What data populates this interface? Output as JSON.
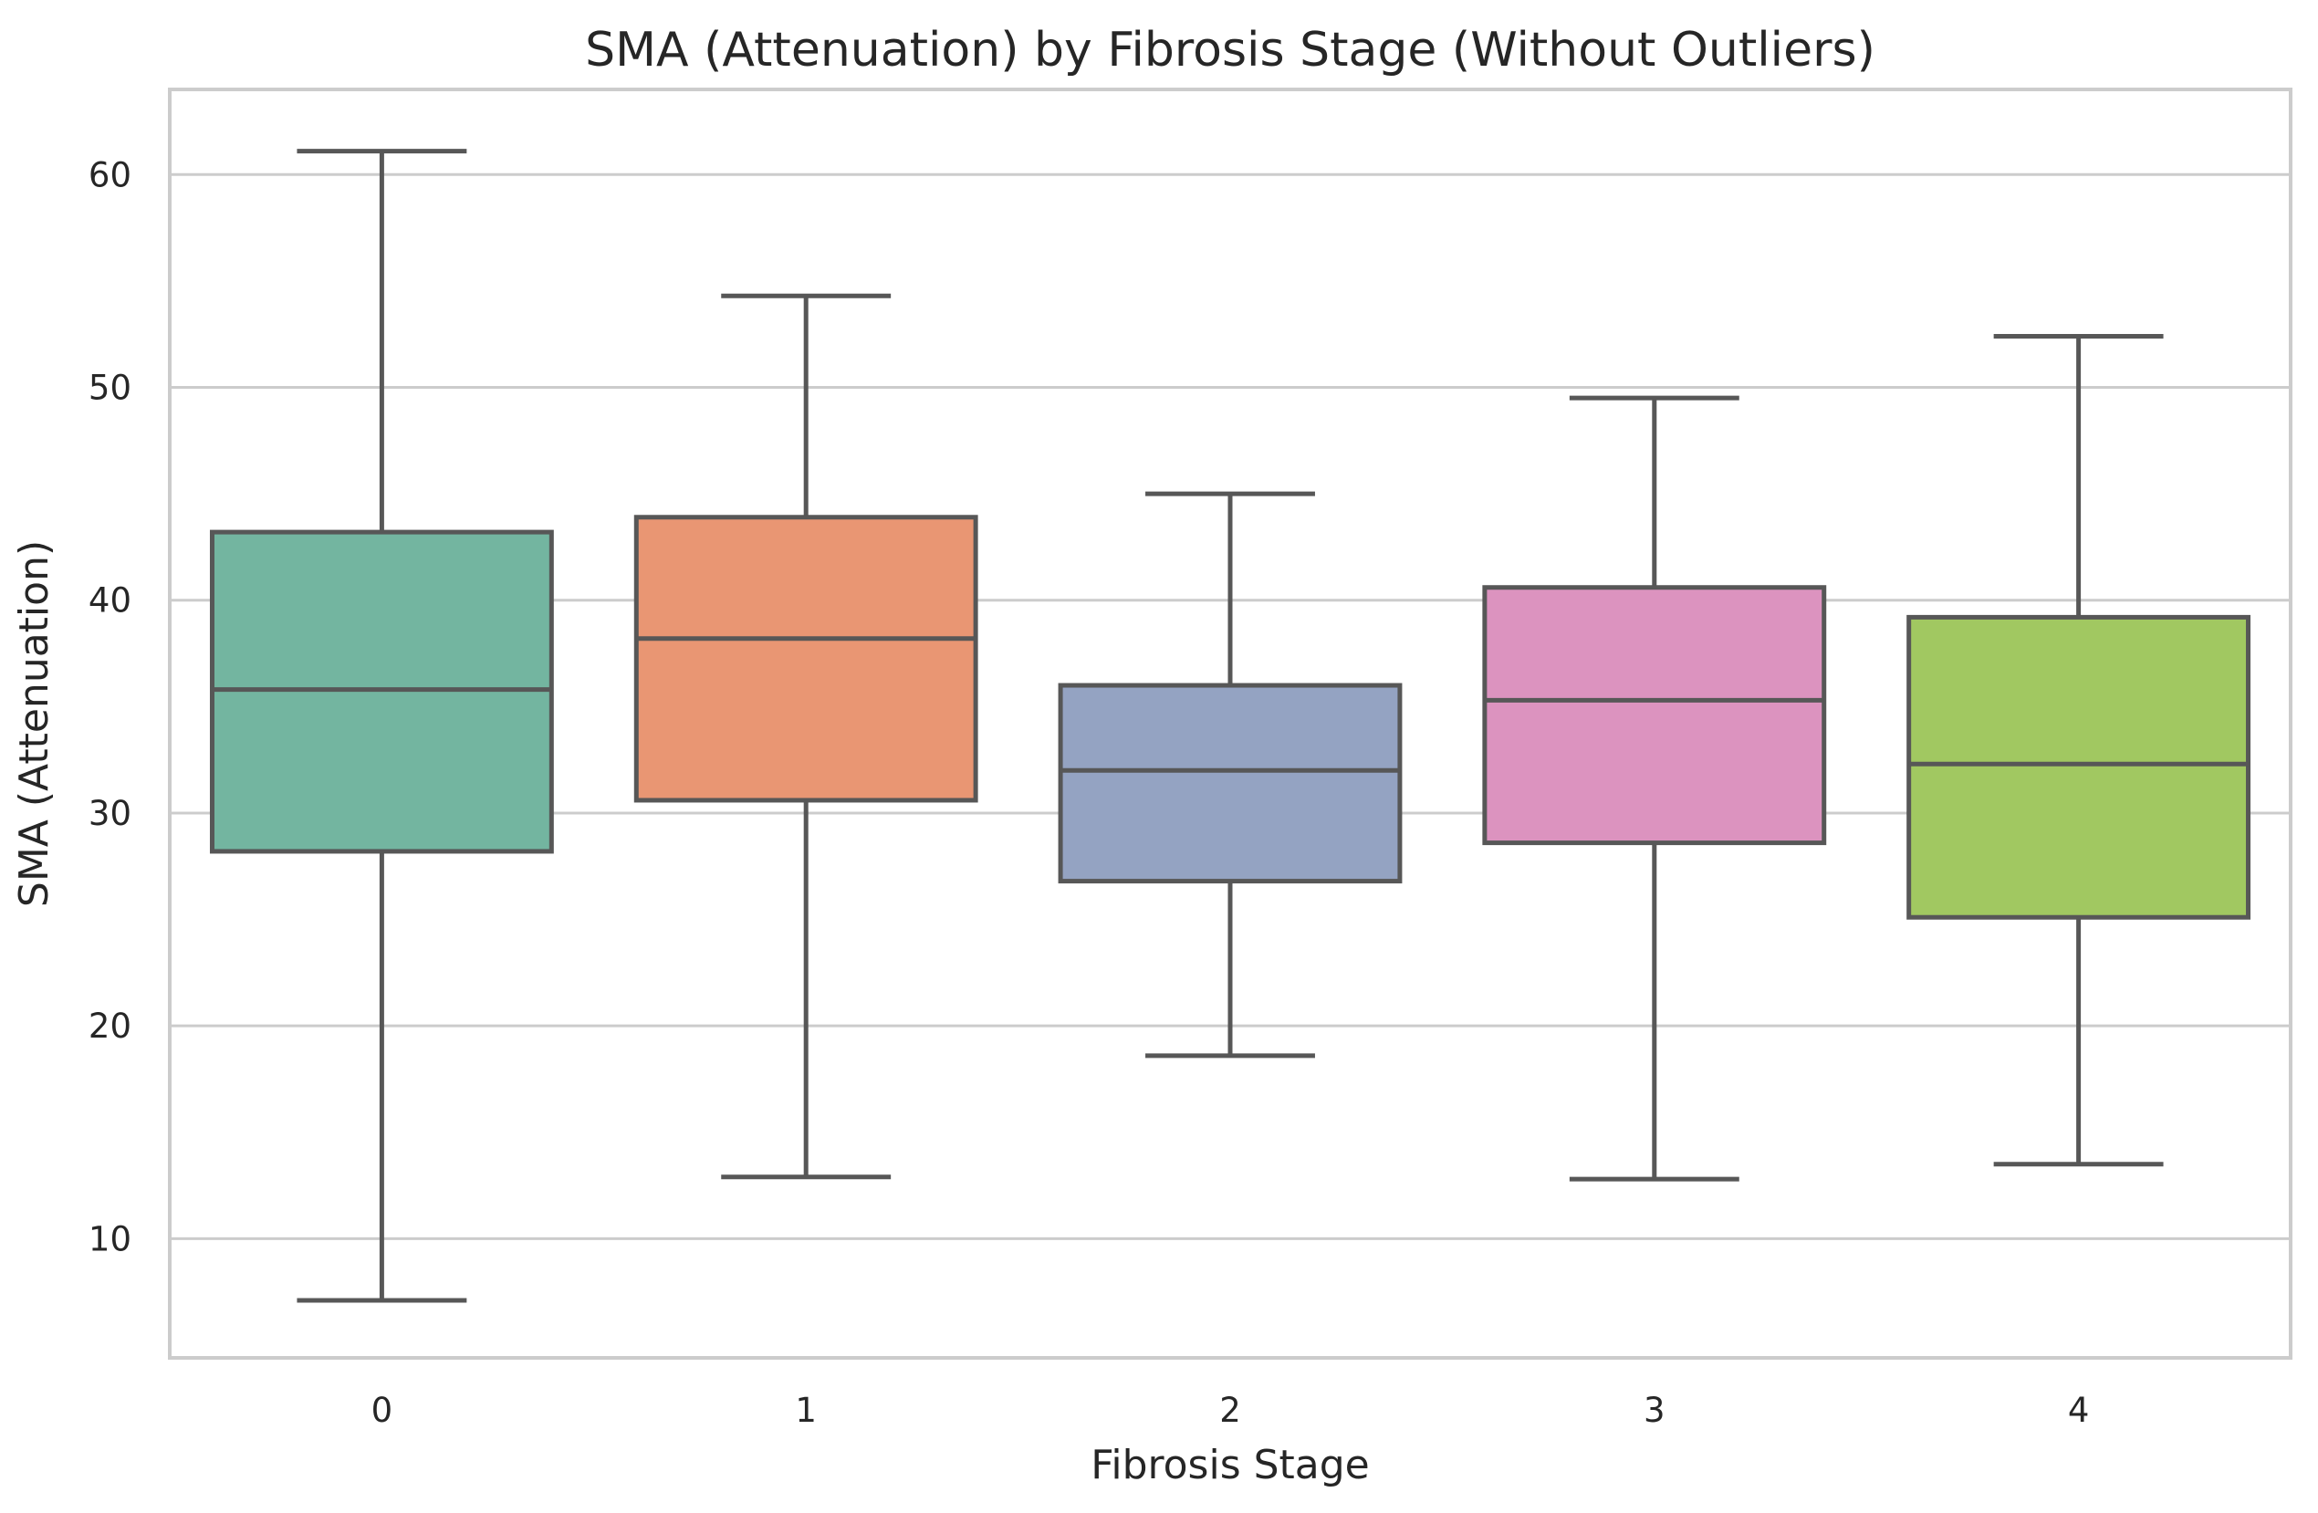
{
  "chart_data": {
    "type": "box",
    "title": "SMA (Attenuation) by Fibrosis Stage (Without Outliers)",
    "xlabel": "Fibrosis Stage",
    "ylabel": "SMA (Attenuation)",
    "ylim": [
      4.4,
      64
    ],
    "yticks": [
      10,
      20,
      30,
      40,
      50,
      60
    ],
    "grid": true,
    "categories": [
      "0",
      "1",
      "2",
      "3",
      "4"
    ],
    "colors": [
      "#73b5a0",
      "#e99673",
      "#94a3c2",
      "#dc93bf",
      "#a1c861"
    ],
    "boxes": [
      {
        "category": "0",
        "whisker_low": 7.1,
        "q1": 28.2,
        "median": 35.8,
        "q3": 43.2,
        "whisker_high": 61.1
      },
      {
        "category": "1",
        "whisker_low": 12.9,
        "q1": 30.6,
        "median": 38.2,
        "q3": 43.9,
        "whisker_high": 54.3
      },
      {
        "category": "2",
        "whisker_low": 18.6,
        "q1": 26.8,
        "median": 32.0,
        "q3": 36.0,
        "whisker_high": 45.0
      },
      {
        "category": "3",
        "whisker_low": 12.8,
        "q1": 28.6,
        "median": 35.3,
        "q3": 40.6,
        "whisker_high": 49.5
      },
      {
        "category": "4",
        "whisker_low": 13.5,
        "q1": 25.1,
        "median": 32.3,
        "q3": 39.2,
        "whisker_high": 52.4
      }
    ]
  }
}
